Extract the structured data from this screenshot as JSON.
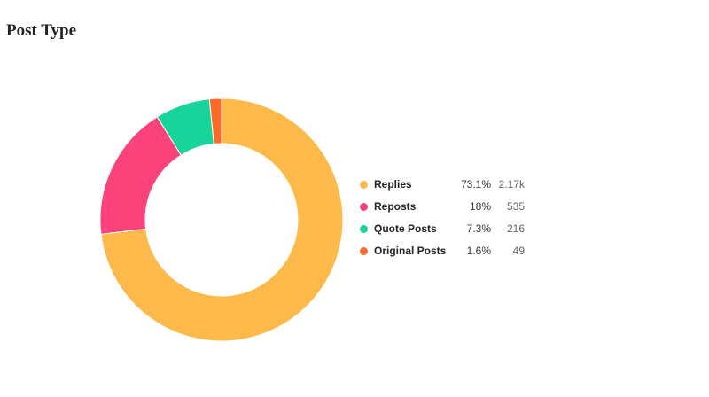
{
  "page": {
    "title": "Post Type"
  },
  "chart_data": {
    "type": "pie",
    "title": "Post Type",
    "donut": true,
    "legend_position": "right",
    "categories": [
      "Replies",
      "Reposts",
      "Quote Posts",
      "Original Posts"
    ],
    "values": [
      73.1,
      18,
      7.3,
      1.6
    ],
    "percent_labels": [
      "73.1%",
      "18%",
      "7.3%",
      "1.6%"
    ],
    "count_labels": [
      "2.17k",
      "535",
      "216",
      "49"
    ],
    "colors": [
      "#FDBA4A",
      "#FC427B",
      "#16D49A",
      "#FF6A28"
    ]
  }
}
